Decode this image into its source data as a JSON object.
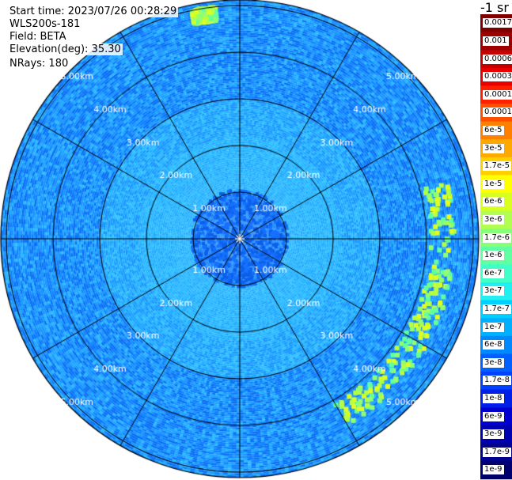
{
  "header": {
    "start_time": "Start time: 2023/07/26 00:28:29",
    "instrument": "WLS200s-181",
    "field": "Field: BETA",
    "elevation": "Elevation(deg): 35.30",
    "nrays": "NRays: 180"
  },
  "colorbar": {
    "unit_label": "-1 sr",
    "labels": [
      "0.0017",
      "0.001",
      "0.0006",
      "0.0003",
      "0.00017",
      "0.0001",
      "6e-5",
      "3e-5",
      "1.7e-5",
      "1e-5",
      "6e-6",
      "3e-6",
      "1.7e-6",
      "1e-6",
      "6e-7",
      "3e-7",
      "1.7e-7",
      "1e-7",
      "6e-8",
      "3e-8",
      "1.7e-8",
      "1e-8",
      "6e-9",
      "3e-9",
      "1.7e-9",
      "1e-9"
    ],
    "colors": [
      "#7f0000",
      "#9e0000",
      "#c40000",
      "#e80000",
      "#ff2000",
      "#ff5000",
      "#ff8000",
      "#ffa800",
      "#ffd000",
      "#ffff00",
      "#d8ff20",
      "#b0ff50",
      "#88ff78",
      "#60ffa0",
      "#40ffc8",
      "#20f0f0",
      "#00d0ff",
      "#00b0ff",
      "#0088ff",
      "#0060ff",
      "#0040ff",
      "#0020e8",
      "#0000d0",
      "#0000b0",
      "#00008f",
      "#00006f"
    ]
  },
  "chart_data": {
    "type": "heatmap",
    "projection": "polar",
    "range_rings_km": [
      1,
      2,
      3,
      4,
      5
    ],
    "ring_labels": [
      "1.00km",
      "2.00km",
      "3.00km",
      "4.00km",
      "5.00km"
    ],
    "spokes_deg": [
      0,
      30,
      60,
      90,
      120,
      150,
      180,
      210,
      240,
      270,
      300,
      330
    ],
    "max_range_km": 5.2,
    "nrays": 180,
    "background_level": "1e-7 to 3e-8",
    "features": [
      {
        "kind": "arc",
        "description_value": "1e-5 to 3e-6",
        "range_km": [
          4.1,
          4.6
        ],
        "azimuth_deg": [
          75,
          150
        ]
      },
      {
        "kind": "patch",
        "description_value": "3e-6",
        "range_km": [
          4.7,
          5.0
        ],
        "azimuth_deg": [
          348,
          354
        ]
      }
    ]
  }
}
